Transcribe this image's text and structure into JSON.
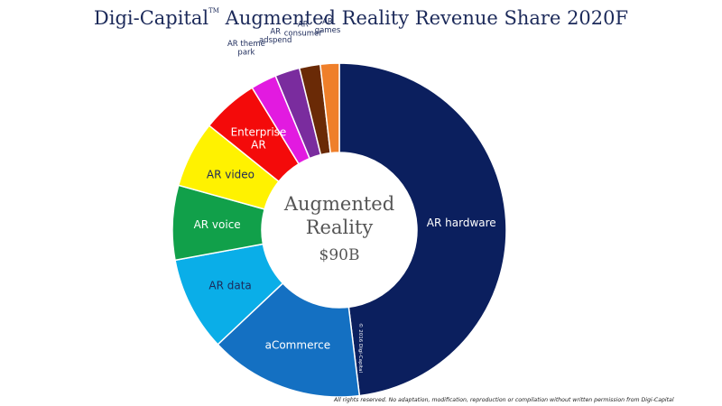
{
  "header": {
    "brand": "Digi-Capital",
    "trademark": "TM",
    "title": "Augmented Reality Revenue Share 2020F"
  },
  "center": {
    "line1": "Augmented",
    "line2": "Reality",
    "total": "$90B"
  },
  "watermark": "© 2016 Digi-Capital",
  "footer": "All rights reserved. No adaptation, modification, reproduction or compilation without written permission from Digi-Capital",
  "chart_data": {
    "type": "pie",
    "title": "Augmented Reality Revenue Share 2020F",
    "total_label": "$90B",
    "unit": "% share of total revenue",
    "categories": [
      "AR hardware",
      "aCommerce",
      "AR data",
      "AR voice",
      "AR video",
      "Enterprise AR",
      "AR theme park",
      "AR adspend",
      "AR consumer",
      "AR games"
    ],
    "values": [
      50.0,
      15.5,
      9.5,
      7.5,
      6.7,
      5.7,
      2.6,
      2.5,
      2.1,
      1.9
    ],
    "colors": [
      "#0b1f5e",
      "#1470c2",
      "#0aaee8",
      "#11a04a",
      "#fff200",
      "#f40a0a",
      "#e21ae0",
      "#7a2c9e",
      "#6a2a06",
      "#ef7f2a"
    ],
    "label_colors": [
      "#ffffff",
      "#ffffff",
      "#1c2a5a",
      "#ffffff",
      "#1c2a5a",
      "#ffffff",
      "#1c2a5a",
      "#1c2a5a",
      "#1c2a5a",
      "#1c2a5a"
    ],
    "label_lines": [
      [
        "AR hardware"
      ],
      [
        "aCommerce"
      ],
      [
        "AR data"
      ],
      [
        "AR voice"
      ],
      [
        "AR video"
      ],
      [
        "Enterprise",
        "AR"
      ],
      [
        "AR theme",
        "park"
      ],
      [
        "AR",
        "adspend"
      ],
      [
        "AR",
        "consumer"
      ],
      [
        "AR",
        "games"
      ]
    ],
    "label_outside": [
      false,
      false,
      false,
      false,
      false,
      false,
      true,
      true,
      true,
      true
    ]
  }
}
